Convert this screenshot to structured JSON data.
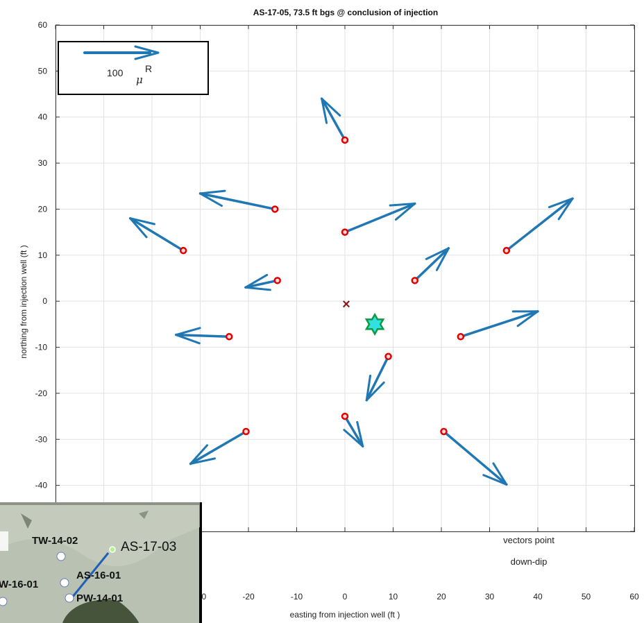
{
  "chart_data": {
    "type": "quiver",
    "title": "AS-17-05, 73.5 ft bgs @ conclusion of injection",
    "xlabel": "easting from injection well (ft )",
    "ylabel": "northing from injection well (ft )",
    "xlim": [
      -60,
      60
    ],
    "ylim": [
      -50,
      60
    ],
    "xticks": [
      -60,
      -50,
      -40,
      -30,
      -20,
      -10,
      0,
      10,
      20,
      30,
      40,
      50,
      60
    ],
    "yticks": [
      60,
      50,
      40,
      30,
      20,
      10,
      0,
      -10,
      -20,
      -30,
      -40,
      -50
    ],
    "grid": true,
    "scale_label": "100",
    "scale_unit": "μ",
    "scale_unit_sup": "R",
    "note_line1": "vectors point",
    "note_line2": "down-dip",
    "injection_well": {
      "x": 0,
      "y": 0
    },
    "star": {
      "x": 6.2,
      "y": -5
    },
    "vectors": [
      {
        "x": 0,
        "y": 35,
        "dx": -4.8,
        "dy": 9
      },
      {
        "x": -14.5,
        "y": 20,
        "dx": -15.5,
        "dy": 3.4
      },
      {
        "x": 0,
        "y": 15,
        "dx": 14.5,
        "dy": 6.2
      },
      {
        "x": -33.5,
        "y": 11,
        "dx": -11,
        "dy": 7
      },
      {
        "x": 33.5,
        "y": 11,
        "dx": 13.7,
        "dy": 11.3
      },
      {
        "x": -14,
        "y": 4.5,
        "dx": -6.6,
        "dy": -1.5
      },
      {
        "x": 14.5,
        "y": 4.5,
        "dx": 7,
        "dy": 7
      },
      {
        "x": -24,
        "y": -7.7,
        "dx": -11,
        "dy": 0.4
      },
      {
        "x": 24,
        "y": -7.7,
        "dx": 16,
        "dy": 5.5
      },
      {
        "x": 9,
        "y": -12,
        "dx": -4.5,
        "dy": -9.5
      },
      {
        "x": 0,
        "y": -25,
        "dx": 3.7,
        "dy": -6.5
      },
      {
        "x": -20.5,
        "y": -28.3,
        "dx": -11.5,
        "dy": -7
      },
      {
        "x": 20.5,
        "y": -28.3,
        "dx": 13,
        "dy": -11.5
      }
    ]
  },
  "inset": {
    "labels": [
      "TW-14-02",
      "AS-17-03",
      "AS-16-01",
      "W-16-01",
      "PW-14-01"
    ]
  },
  "colors": {
    "vector": "#1f77b4",
    "point_fill": "#ffd7d7",
    "point_stroke": "#e00000",
    "origin": "#8b1a1a",
    "star_fill": "#33e0e0",
    "star_stroke": "#119944",
    "grid": "#e2e2e2"
  }
}
